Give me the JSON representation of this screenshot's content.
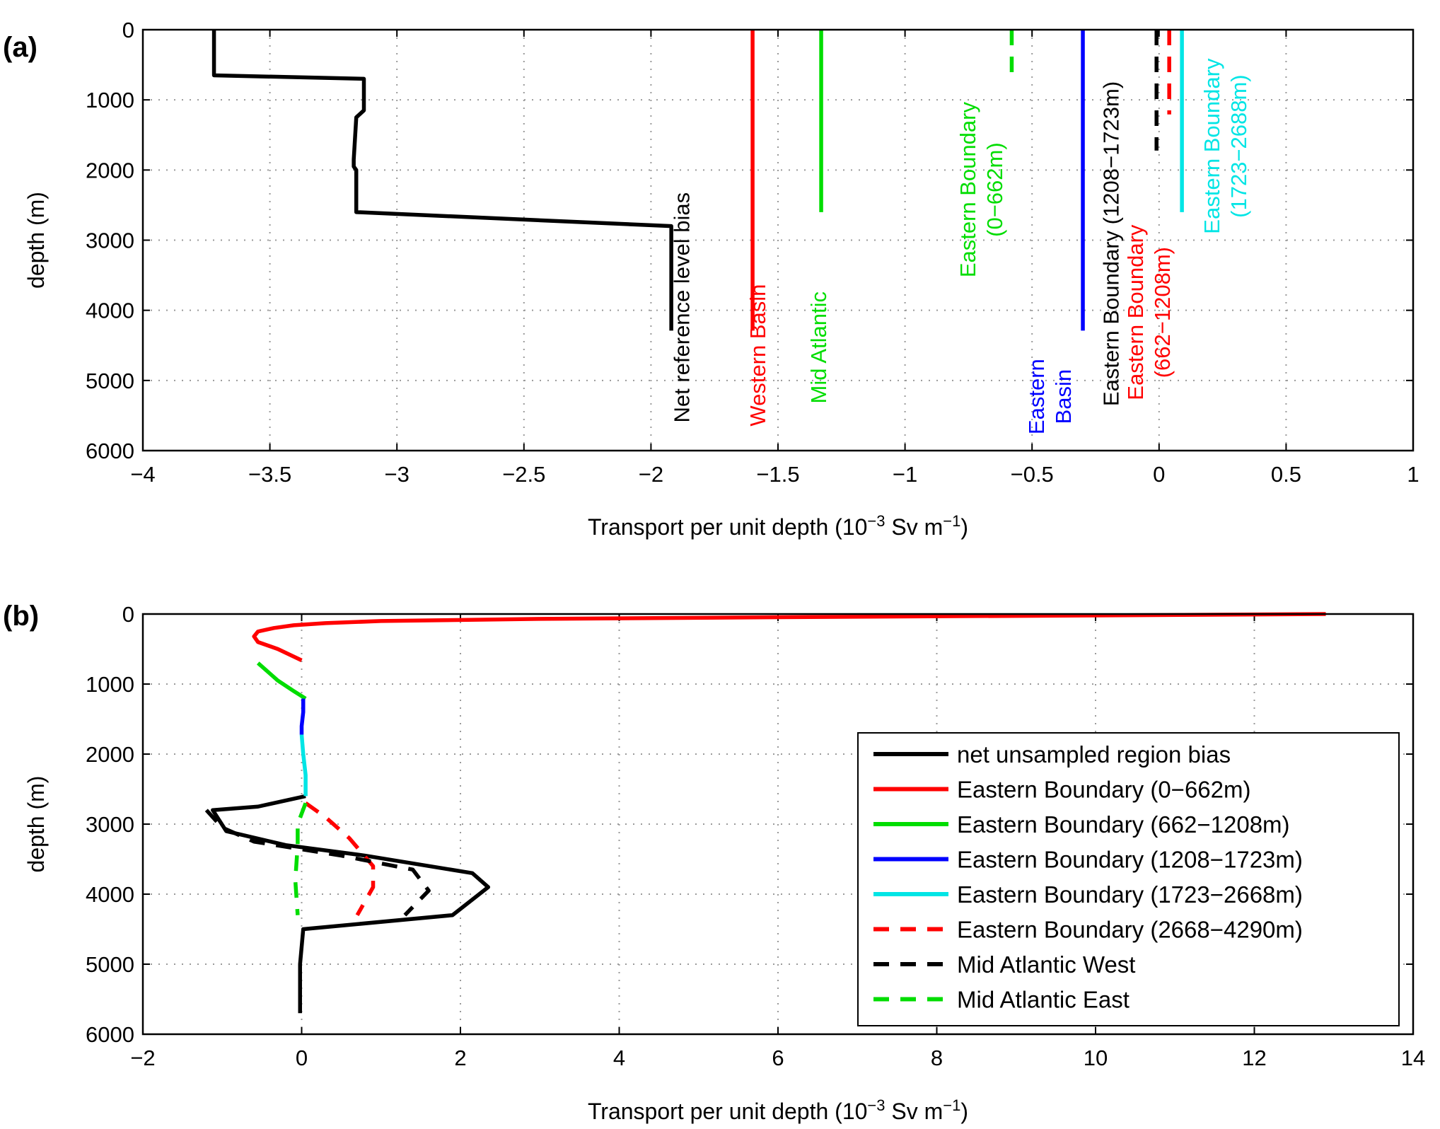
{
  "chart_data": [
    {
      "panel_label": "(a)",
      "type": "line",
      "xlabel": "Transport per unit depth (10",
      "xlabel_exp": "−3",
      "xlabel_unit": " Sv m",
      "xlabel_unit_exp": "−1",
      "xlabel_close": ")",
      "ylabel": "depth (m)",
      "xlim": [
        -4,
        1
      ],
      "ylim": [
        0,
        6000
      ],
      "y_inverted": true,
      "grid": true,
      "xticks": [
        -4,
        -3.5,
        -3,
        -2.5,
        -2,
        -1.5,
        -1,
        -0.5,
        0,
        0.5,
        1
      ],
      "xtick_labels": [
        "−4",
        "−3.5",
        "−3",
        "−2.5",
        "−2",
        "−1.5",
        "−1",
        "−0.5",
        "0",
        "0.5",
        "1"
      ],
      "yticks": [
        0,
        1000,
        2000,
        3000,
        4000,
        5000,
        6000
      ],
      "ytick_labels": [
        "0",
        "1000",
        "2000",
        "3000",
        "4000",
        "5000",
        "6000"
      ],
      "series": [
        {
          "id": "net-reference-level-bias",
          "color": "#000000",
          "dash": "solid",
          "x": [
            -3.72,
            -3.72,
            -3.13,
            -3.13,
            -3.16,
            -3.17,
            -3.17,
            -3.16,
            -3.16,
            -1.92,
            -1.92
          ],
          "y": [
            0,
            650,
            700,
            1150,
            1250,
            1850,
            1950,
            2000,
            2600,
            2800,
            4290
          ]
        },
        {
          "id": "western-basin",
          "color": "#ff0000",
          "dash": "solid",
          "x": [
            -1.6,
            -1.6
          ],
          "y": [
            0,
            4290
          ]
        },
        {
          "id": "mid-atlantic",
          "color": "#00dd00",
          "dash": "solid",
          "x": [
            -1.33,
            -1.33
          ],
          "y": [
            0,
            2600
          ]
        },
        {
          "id": "eastern-boundary-0-662m",
          "color": "#00dd00",
          "dash": "dashed",
          "x": [
            -0.58,
            -0.58
          ],
          "y": [
            0,
            662
          ]
        },
        {
          "id": "eastern-basin",
          "color": "#0000ff",
          "dash": "solid",
          "x": [
            -0.3,
            -0.3
          ],
          "y": [
            0,
            4290
          ]
        },
        {
          "id": "eastern-boundary-1208-1723m",
          "color": "#000000",
          "dash": "dashed",
          "x": [
            -0.01,
            -0.01
          ],
          "y": [
            0,
            1723
          ]
        },
        {
          "id": "eastern-boundary-662-1208m",
          "color": "#ff0000",
          "dash": "dashed",
          "x": [
            0.04,
            0.04
          ],
          "y": [
            0,
            1208
          ]
        },
        {
          "id": "eastern-boundary-1723-2688m",
          "color": "#00e5e5",
          "dash": "solid",
          "x": [
            0.09,
            0.09
          ],
          "y": [
            0,
            2600
          ]
        }
      ],
      "annotations": [
        {
          "id": "annot-net-reference",
          "color": "#000000",
          "lines": [
            "Net reference level bias"
          ],
          "x": -1.85,
          "y": 3960
        },
        {
          "id": "annot-western-basin",
          "color": "#ff0000",
          "lines": [
            "Western Basin"
          ],
          "x": -1.55,
          "y": 4640
        },
        {
          "id": "annot-mid-atlantic",
          "color": "#00dd00",
          "lines": [
            "Mid Atlantic"
          ],
          "x": -1.31,
          "y": 4530
        },
        {
          "id": "annot-eastern-boundary-0-662",
          "color": "#00dd00",
          "lines": [
            "Eastern Boundary",
            "(0−662m)"
          ],
          "x": -0.67,
          "y": 2280
        },
        {
          "id": "annot-eastern-basin",
          "color": "#0000ff",
          "lines": [
            "Eastern",
            "Basin"
          ],
          "x": -0.4,
          "y": 5230
        },
        {
          "id": "annot-eastern-boundary-1208-1723",
          "color": "#000000",
          "lines": [
            "Eastern Boundary (1208−1723m)"
          ],
          "x": -0.16,
          "y": 3050
        },
        {
          "id": "annot-eastern-boundary-662-1208",
          "color": "#ff0000",
          "lines": [
            "Eastern Boundary",
            "(662−1208m)"
          ],
          "x": -0.01,
          "y": 4030
        },
        {
          "id": "annot-eastern-boundary-1723-2688",
          "color": "#00e5e5",
          "lines": [
            "Eastern Boundary",
            "(1723−2688m)"
          ],
          "x": 0.29,
          "y": 1660
        }
      ]
    },
    {
      "panel_label": "(b)",
      "type": "line",
      "xlabel": "Transport per unit depth (10",
      "xlabel_exp": "−3",
      "xlabel_unit": " Sv m",
      "xlabel_unit_exp": "−1",
      "xlabel_close": ")",
      "ylabel": "depth (m)",
      "xlim": [
        -2,
        14
      ],
      "ylim": [
        0,
        6000
      ],
      "y_inverted": true,
      "grid": true,
      "xticks": [
        -2,
        0,
        2,
        4,
        6,
        8,
        10,
        12,
        14
      ],
      "xtick_labels": [
        "−2",
        "0",
        "2",
        "4",
        "6",
        "8",
        "10",
        "12",
        "14"
      ],
      "yticks": [
        0,
        1000,
        2000,
        3000,
        4000,
        5000,
        6000
      ],
      "ytick_labels": [
        "0",
        "1000",
        "2000",
        "3000",
        "4000",
        "5000",
        "6000"
      ],
      "legend_position": "bottom-right",
      "series": [
        {
          "id": "net-unsampled-region-bias",
          "name": "net unsampled region bias",
          "color": "#000000",
          "dash": "solid",
          "in_legend": true,
          "x": [
            -0.02,
            -0.02,
            0.02,
            0.02,
            1.9,
            2.35,
            2.15,
            0.8,
            -0.2,
            -0.95,
            -1.12,
            -0.55,
            0.05
          ],
          "y": [
            5700,
            5000,
            4500,
            4500,
            4300,
            3900,
            3700,
            3450,
            3300,
            3100,
            2800,
            2750,
            2600
          ]
        },
        {
          "id": "eastern-boundary-0-662m",
          "name": "Eastern Boundary (0−662m)",
          "color": "#ff0000",
          "dash": "solid",
          "in_legend": true,
          "x": [
            12.9,
            10,
            6,
            3,
            1,
            0.3,
            -0.1,
            -0.35,
            -0.55,
            -0.6,
            -0.55,
            -0.3,
            0
          ],
          "y": [
            0,
            20,
            45,
            70,
            100,
            130,
            160,
            200,
            250,
            320,
            400,
            500,
            662
          ]
        },
        {
          "id": "eastern-boundary-662-1208m",
          "name": "Eastern Boundary (662−1208m)",
          "color": "#00dd00",
          "dash": "solid",
          "in_legend": true,
          "x": [
            -0.55,
            -0.45,
            -0.3,
            -0.1,
            0.05
          ],
          "y": [
            700,
            800,
            950,
            1100,
            1208
          ]
        },
        {
          "id": "eastern-boundary-1208-1723m",
          "name": "Eastern Boundary (1208−1723m)",
          "color": "#0000ff",
          "dash": "solid",
          "in_legend": true,
          "x": [
            0.02,
            0.02,
            0.0,
            0.0
          ],
          "y": [
            1208,
            1400,
            1600,
            1723
          ]
        },
        {
          "id": "eastern-boundary-1723-2668m",
          "name": "Eastern Boundary (1723−2668m)",
          "color": "#00e5e5",
          "dash": "solid",
          "in_legend": true,
          "x": [
            0.0,
            0.02,
            0.05,
            0.05
          ],
          "y": [
            1723,
            2000,
            2300,
            2600
          ]
        },
        {
          "id": "eastern-boundary-2668-4290m",
          "name": "Eastern Boundary (2668−4290m)",
          "color": "#ff0000",
          "dash": "dashed",
          "in_legend": true,
          "x": [
            0.05,
            0.3,
            0.6,
            0.9,
            0.9,
            0.8,
            0.7
          ],
          "y": [
            2700,
            2900,
            3200,
            3600,
            3900,
            4100,
            4300
          ]
        },
        {
          "id": "mid-atlantic-west",
          "name": "Mid Atlantic West",
          "color": "#000000",
          "dash": "dashed",
          "in_legend": true,
          "x": [
            -1.2,
            -1.0,
            -0.6,
            0.5,
            1.4,
            1.6,
            1.3
          ],
          "y": [
            2800,
            3050,
            3250,
            3450,
            3650,
            3950,
            4300
          ]
        },
        {
          "id": "mid-atlantic-east",
          "name": "Mid Atlantic East",
          "color": "#00dd00",
          "dash": "dashed",
          "in_legend": true,
          "x": [
            0.05,
            -0.05,
            -0.05,
            -0.08,
            -0.05
          ],
          "y": [
            2700,
            3000,
            3300,
            3800,
            4300
          ]
        }
      ]
    }
  ]
}
